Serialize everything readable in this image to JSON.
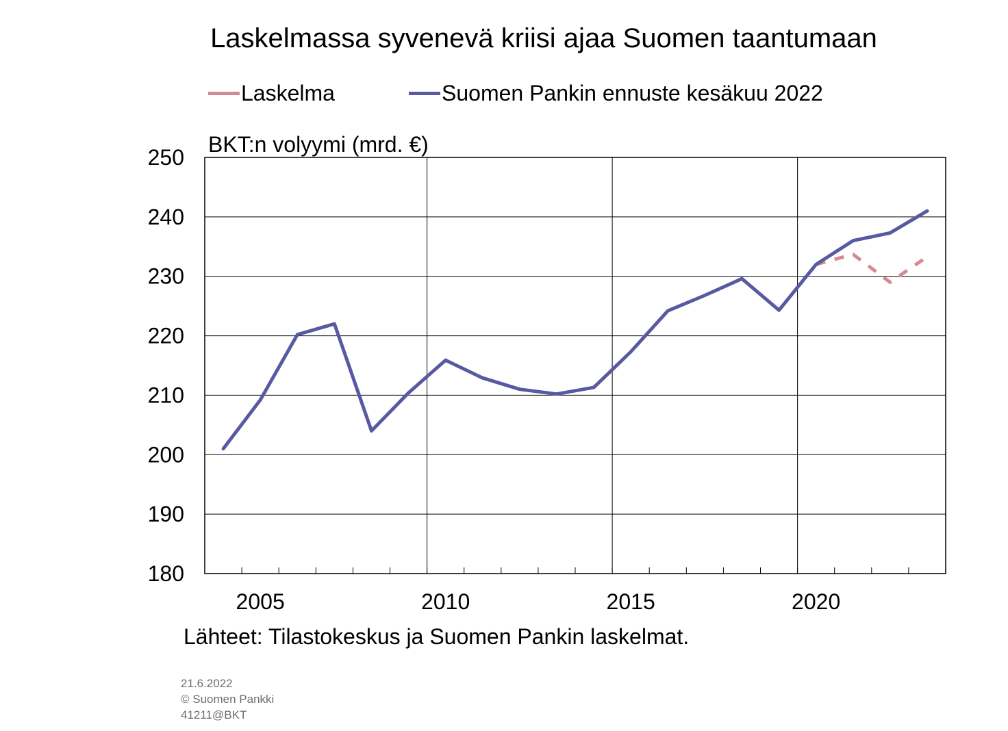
{
  "chart_data": {
    "type": "line",
    "title": "Laskelmassa syvenevä kriisi ajaa Suomen taantumaan",
    "ylabel": "BKT:n volyymi (mrd. €)",
    "xlabel": "",
    "ylim": [
      180,
      250
    ],
    "yticks": [
      "180",
      "190",
      "200",
      "210",
      "220",
      "230",
      "240",
      "250"
    ],
    "xticks": [
      "2005",
      "2010",
      "2015",
      "2020"
    ],
    "x": [
      2004,
      2005,
      2006,
      2007,
      2008,
      2009,
      2010,
      2011,
      2012,
      2013,
      2014,
      2015,
      2016,
      2017,
      2018,
      2019,
      2020,
      2021,
      2022,
      2023
    ],
    "grid": true,
    "legend_position": "top",
    "series": [
      {
        "name": "Laskelma",
        "color": "#d58a93",
        "style": "dashed",
        "x": [
          2020,
          2021,
          2022,
          2023
        ],
        "values": [
          232.0,
          233.7,
          229.0,
          233.3
        ]
      },
      {
        "name": "Suomen Pankin ennuste kesäkuu 2022",
        "color": "#575aa0",
        "style": "solid",
        "x": [
          2004,
          2005,
          2006,
          2007,
          2008,
          2009,
          2010,
          2011,
          2012,
          2013,
          2014,
          2015,
          2016,
          2017,
          2018,
          2019,
          2020,
          2021,
          2022,
          2023
        ],
        "values": [
          201.0,
          209.2,
          220.2,
          222.0,
          204.0,
          210.4,
          215.9,
          212.9,
          211.0,
          210.2,
          211.3,
          217.3,
          224.2,
          226.8,
          229.6,
          224.3,
          232.0,
          236.0,
          237.3,
          241.0
        ]
      }
    ]
  },
  "sources": "Lähteet: Tilastokeskus ja Suomen Pankin laskelmat.",
  "footer": {
    "date": "21.6.2022",
    "copyright": "© Suomen Pankki",
    "code": "41211@BKT"
  }
}
